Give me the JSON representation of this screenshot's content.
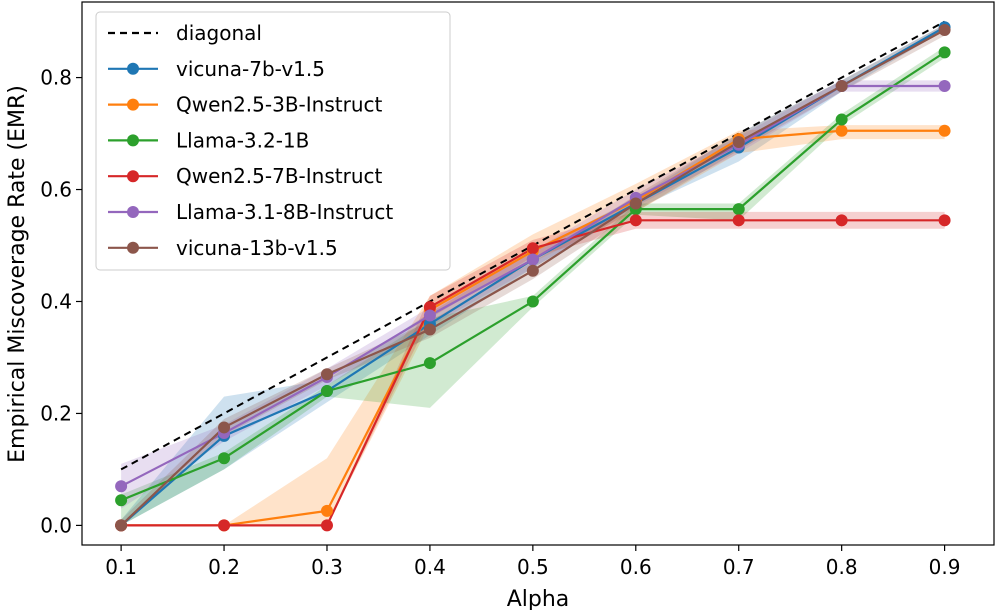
{
  "chart_data": {
    "type": "line",
    "title": "",
    "xlabel": "Alpha",
    "ylabel": "Empirical Miscoverage Rate (EMR)",
    "x": [
      0.1,
      0.2,
      0.3,
      0.4,
      0.5,
      0.6,
      0.7,
      0.8,
      0.9
    ],
    "x_tick_labels": [
      "0.1",
      "0.2",
      "0.3",
      "0.4",
      "0.5",
      "0.6",
      "0.7",
      "0.8",
      "0.9"
    ],
    "y_ticks": [
      0.0,
      0.2,
      0.4,
      0.6,
      0.8
    ],
    "y_tick_labels": [
      "0.0",
      "0.2",
      "0.4",
      "0.6",
      "0.8"
    ],
    "xlim": [
      0.062,
      0.948
    ],
    "ylim": [
      -0.035,
      0.935
    ],
    "legend_position": "top-left",
    "reference_line": {
      "name": "diagonal",
      "style": "dashed",
      "color": "#000000",
      "points": [
        [
          0.1,
          0.1
        ],
        [
          0.9,
          0.9
        ]
      ]
    },
    "series": [
      {
        "name": "vicuna-7b-v1.5",
        "color": "#1f77b4",
        "values": [
          0.0,
          0.16,
          0.24,
          0.36,
          0.475,
          0.575,
          0.675,
          0.785,
          0.89
        ],
        "lower": [
          0.0,
          0.1,
          0.22,
          0.34,
          0.46,
          0.565,
          0.65,
          0.775,
          0.885
        ],
        "upper": [
          0.01,
          0.23,
          0.26,
          0.38,
          0.49,
          0.585,
          0.7,
          0.795,
          0.895
        ]
      },
      {
        "name": "Qwen2.5-3B-Instruct",
        "color": "#ff7f0e",
        "values": [
          0.0,
          0.0,
          0.026,
          0.385,
          0.49,
          0.58,
          0.69,
          0.705,
          0.705
        ],
        "lower": [
          0.0,
          0.0,
          0.0,
          0.36,
          0.47,
          0.56,
          0.665,
          0.69,
          0.69
        ],
        "upper": [
          0.0,
          0.0,
          0.12,
          0.41,
          0.52,
          0.61,
          0.705,
          0.715,
          0.715
        ]
      },
      {
        "name": "Llama-3.2-1B",
        "color": "#2ca02c",
        "values": [
          0.045,
          0.12,
          0.24,
          0.29,
          0.4,
          0.565,
          0.565,
          0.725,
          0.845
        ],
        "lower": [
          0.0,
          0.1,
          0.23,
          0.21,
          0.39,
          0.555,
          0.545,
          0.715,
          0.835
        ],
        "upper": [
          0.055,
          0.13,
          0.25,
          0.37,
          0.41,
          0.575,
          0.575,
          0.735,
          0.855
        ]
      },
      {
        "name": "Qwen2.5-7B-Instruct",
        "color": "#d62728",
        "values": [
          0.0,
          0.0,
          0.0,
          0.39,
          0.495,
          0.545,
          0.545,
          0.545,
          0.545
        ],
        "lower": [
          0.0,
          0.0,
          0.0,
          0.37,
          0.48,
          0.53,
          0.53,
          0.53,
          0.53
        ],
        "upper": [
          0.0,
          0.0,
          0.0,
          0.41,
          0.51,
          0.56,
          0.56,
          0.56,
          0.56
        ]
      },
      {
        "name": "Llama-3.1-8B-Instruct",
        "color": "#9467bd",
        "values": [
          0.07,
          0.165,
          0.265,
          0.375,
          0.475,
          0.585,
          0.68,
          0.785,
          0.785
        ],
        "lower": [
          0.03,
          0.15,
          0.25,
          0.355,
          0.46,
          0.57,
          0.665,
          0.775,
          0.775
        ],
        "upper": [
          0.11,
          0.18,
          0.28,
          0.39,
          0.49,
          0.6,
          0.695,
          0.795,
          0.795
        ]
      },
      {
        "name": "vicuna-13b-v1.5",
        "color": "#8c564b",
        "values": [
          0.0,
          0.175,
          0.27,
          0.35,
          0.455,
          0.575,
          0.685,
          0.785,
          0.885
        ],
        "lower": [
          0.0,
          0.16,
          0.26,
          0.335,
          0.44,
          0.56,
          0.67,
          0.775,
          0.875
        ],
        "upper": [
          0.01,
          0.19,
          0.28,
          0.365,
          0.47,
          0.59,
          0.7,
          0.795,
          0.895
        ]
      }
    ]
  }
}
